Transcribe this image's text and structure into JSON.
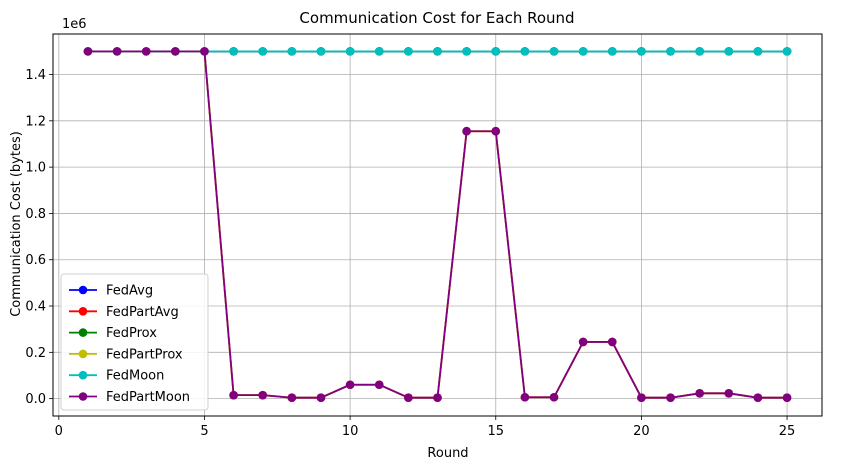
{
  "chart_data": {
    "type": "line",
    "title": "Communication Cost for Each Round",
    "xlabel": "Round",
    "ylabel": "Communication Cost (bytes)",
    "y_multiplier_label": "1e6",
    "xlim": [
      -0.2,
      26.2
    ],
    "ylim": [
      -0.075,
      1.575
    ],
    "xticks": [
      0,
      5,
      10,
      15,
      20,
      25
    ],
    "yticks": [
      0.0,
      0.2,
      0.4,
      0.6,
      0.8,
      1.0,
      1.2,
      1.4
    ],
    "ytick_labels": [
      "0.0",
      "0.2",
      "0.4",
      "0.6",
      "0.8",
      "1.0",
      "1.2",
      "1.4"
    ],
    "grid": true,
    "legend_position": "lower-left",
    "x": [
      1,
      2,
      3,
      4,
      5,
      6,
      7,
      8,
      9,
      10,
      11,
      12,
      13,
      14,
      15,
      16,
      17,
      18,
      19,
      20,
      21,
      22,
      23,
      24,
      25
    ],
    "series": [
      {
        "name": "FedAvg",
        "color": "#0000ff",
        "values": [
          1.5,
          1.5,
          1.5,
          1.5,
          1.5,
          1.5,
          1.5,
          1.5,
          1.5,
          1.5,
          1.5,
          1.5,
          1.5,
          1.5,
          1.5,
          1.5,
          1.5,
          1.5,
          1.5,
          1.5,
          1.5,
          1.5,
          1.5,
          1.5,
          1.5
        ]
      },
      {
        "name": "FedPartAvg",
        "color": "#ff0000",
        "values": [
          1.5,
          1.5,
          1.5,
          1.5,
          1.5,
          0.015,
          0.015,
          0.004,
          0.004,
          0.06,
          0.06,
          0.004,
          0.004,
          1.155,
          1.155,
          0.006,
          0.006,
          0.245,
          0.245,
          0.004,
          0.004,
          0.023,
          0.023,
          0.004,
          0.004
        ]
      },
      {
        "name": "FedProx",
        "color": "#008000",
        "values": [
          1.5,
          1.5,
          1.5,
          1.5,
          1.5,
          1.5,
          1.5,
          1.5,
          1.5,
          1.5,
          1.5,
          1.5,
          1.5,
          1.5,
          1.5,
          1.5,
          1.5,
          1.5,
          1.5,
          1.5,
          1.5,
          1.5,
          1.5,
          1.5,
          1.5
        ]
      },
      {
        "name": "FedPartProx",
        "color": "#bfbf00",
        "values": [
          1.5,
          1.5,
          1.5,
          1.5,
          1.5,
          0.015,
          0.015,
          0.004,
          0.004,
          0.06,
          0.06,
          0.004,
          0.004,
          1.155,
          1.155,
          0.006,
          0.006,
          0.245,
          0.245,
          0.004,
          0.004,
          0.023,
          0.023,
          0.004,
          0.004
        ]
      },
      {
        "name": "FedMoon",
        "color": "#00bfbf",
        "values": [
          1.5,
          1.5,
          1.5,
          1.5,
          1.5,
          1.5,
          1.5,
          1.5,
          1.5,
          1.5,
          1.5,
          1.5,
          1.5,
          1.5,
          1.5,
          1.5,
          1.5,
          1.5,
          1.5,
          1.5,
          1.5,
          1.5,
          1.5,
          1.5,
          1.5
        ]
      },
      {
        "name": "FedPartMoon",
        "color": "#800080",
        "values": [
          1.5,
          1.5,
          1.5,
          1.5,
          1.5,
          0.015,
          0.015,
          0.004,
          0.004,
          0.06,
          0.06,
          0.004,
          0.004,
          1.155,
          1.155,
          0.006,
          0.006,
          0.245,
          0.245,
          0.004,
          0.004,
          0.023,
          0.023,
          0.004,
          0.004
        ]
      }
    ]
  }
}
